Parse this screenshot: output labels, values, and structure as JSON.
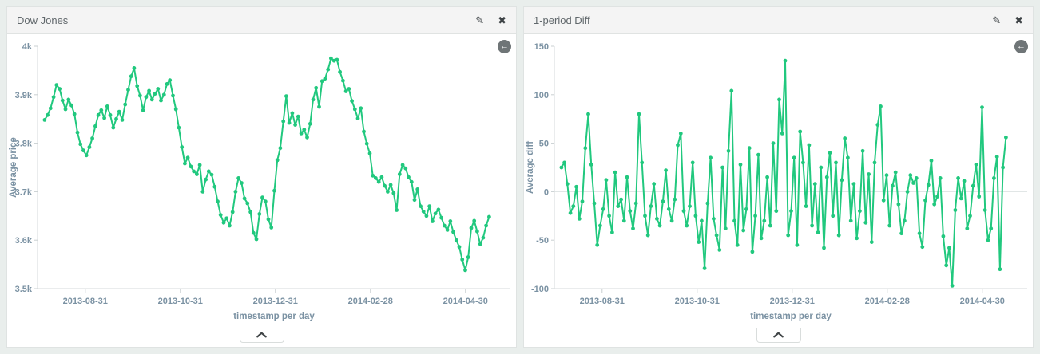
{
  "page": {
    "background": "#e9eeec"
  },
  "panels": [
    {
      "title": "Dow Jones",
      "edit_icon": "✎",
      "close_icon": "✖",
      "nav_icon": "←"
    },
    {
      "title": "1-period Diff",
      "edit_icon": "✎",
      "close_icon": "✖",
      "nav_icon": "←"
    }
  ],
  "chart_data": [
    {
      "type": "line",
      "title": "Dow Jones",
      "ylabel": "Average price",
      "xlabel": "timestamp per day",
      "ylim": [
        3500,
        4000
      ],
      "series_color": "#21c87e",
      "legend": "none",
      "grid": "zero-line-only",
      "x_start_frac": 0.015,
      "x_end_frac": 0.955,
      "yticks": [
        {
          "v": 4000,
          "label": "4k"
        },
        {
          "v": 3900,
          "label": "3.9k"
        },
        {
          "v": 3800,
          "label": "3.8k"
        },
        {
          "v": 3700,
          "label": "3.7k"
        },
        {
          "v": 3600,
          "label": "3.6k"
        },
        {
          "v": 3500,
          "label": "3.5k"
        }
      ],
      "xticks": [
        {
          "f": 0.101,
          "label": "2013-08-31"
        },
        {
          "f": 0.302,
          "label": "2013-10-31"
        },
        {
          "f": 0.503,
          "label": "2013-12-31"
        },
        {
          "f": 0.704,
          "label": "2014-02-28"
        },
        {
          "f": 0.905,
          "label": "2014-04-30"
        }
      ],
      "values": [
        3848,
        3858,
        3872,
        3895,
        3920,
        3912,
        3888,
        3870,
        3890,
        3878,
        3860,
        3822,
        3798,
        3785,
        3775,
        3792,
        3810,
        3835,
        3858,
        3868,
        3852,
        3876,
        3858,
        3832,
        3850,
        3865,
        3848,
        3880,
        3910,
        3938,
        3955,
        3918,
        3898,
        3868,
        3895,
        3908,
        3890,
        3902,
        3912,
        3888,
        3900,
        3922,
        3930,
        3898,
        3870,
        3832,
        3792,
        3758,
        3770,
        3752,
        3742,
        3736,
        3755,
        3700,
        3725,
        3742,
        3735,
        3710,
        3680,
        3652,
        3636,
        3645,
        3630,
        3658,
        3700,
        3728,
        3718,
        3686,
        3676,
        3658,
        3615,
        3602,
        3654,
        3688,
        3680,
        3643,
        3626,
        3702,
        3765,
        3790,
        3845,
        3897,
        3842,
        3862,
        3838,
        3855,
        3820,
        3828,
        3812,
        3840,
        3890,
        3914,
        3875,
        3928,
        3933,
        3952,
        3975,
        3970,
        3972,
        3947,
        3929,
        3907,
        3912,
        3887,
        3870,
        3851,
        3872,
        3824,
        3799,
        3779,
        3733,
        3728,
        3720,
        3730,
        3712,
        3700,
        3714,
        3697,
        3662,
        3736,
        3755,
        3748,
        3730,
        3720,
        3683,
        3705,
        3670,
        3659,
        3650,
        3670,
        3639,
        3655,
        3663,
        3646,
        3630,
        3621,
        3639,
        3617,
        3600,
        3586,
        3560,
        3538,
        3565,
        3625,
        3640,
        3618,
        3592,
        3605,
        3630,
        3648
      ]
    },
    {
      "type": "line",
      "title": "1-period Diff",
      "ylabel": "Average diff",
      "xlabel": "timestamp per day",
      "ylim": [
        -100,
        150
      ],
      "series_color": "#21c87e",
      "legend": "none",
      "grid": "zero-line-only",
      "x_start_frac": 0.015,
      "x_end_frac": 0.955,
      "yticks": [
        {
          "v": 150,
          "label": "150"
        },
        {
          "v": 100,
          "label": "100"
        },
        {
          "v": 50,
          "label": "50"
        },
        {
          "v": 0,
          "label": "0"
        },
        {
          "v": -50,
          "label": "-50"
        },
        {
          "v": -100,
          "label": "-100"
        }
      ],
      "xticks": [
        {
          "f": 0.101,
          "label": "2013-08-31"
        },
        {
          "f": 0.302,
          "label": "2013-10-31"
        },
        {
          "f": 0.503,
          "label": "2013-12-31"
        },
        {
          "f": 0.704,
          "label": "2014-02-28"
        },
        {
          "f": 0.905,
          "label": "2014-04-30"
        }
      ],
      "values": [
        25,
        30,
        8,
        -22,
        -15,
        5,
        -28,
        -10,
        45,
        80,
        28,
        -12,
        -55,
        -35,
        -18,
        12,
        -25,
        -42,
        20,
        -15,
        -8,
        -30,
        15,
        -20,
        -38,
        -12,
        80,
        30,
        -25,
        -45,
        -15,
        8,
        -28,
        -35,
        -10,
        22,
        -18,
        -30,
        -8,
        48,
        60,
        -20,
        -35,
        -15,
        30,
        -25,
        -52,
        -30,
        -79,
        -12,
        35,
        -28,
        -45,
        -60,
        25,
        -38,
        42,
        104,
        -30,
        -55,
        28,
        -40,
        -18,
        45,
        -62,
        -25,
        38,
        -48,
        -30,
        15,
        -35,
        50,
        -20,
        95,
        60,
        135,
        -45,
        -20,
        35,
        -55,
        62,
        30,
        -15,
        48,
        -35,
        8,
        -42,
        25,
        -58,
        15,
        40,
        -25,
        30,
        -45,
        12,
        55,
        35,
        -30,
        8,
        -48,
        -20,
        42,
        -32,
        18,
        -52,
        30,
        69,
        88,
        -9,
        17,
        -35,
        6,
        20,
        -13,
        -43,
        -30,
        0,
        17,
        9,
        14,
        -43,
        -57,
        -9,
        7,
        32,
        -13,
        -5,
        14,
        -46,
        -76,
        -58,
        -97,
        -19,
        14,
        -7,
        11,
        -38,
        -25,
        6,
        28,
        -5,
        87,
        -19,
        -50,
        -38,
        14,
        36,
        -80,
        25,
        56
      ]
    }
  ]
}
